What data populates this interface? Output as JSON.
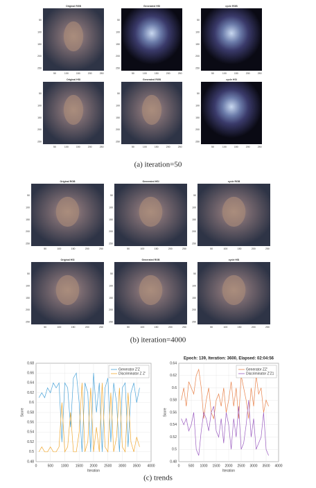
{
  "figure": {
    "image_ticks": [
      "50",
      "100",
      "150",
      "200",
      "250"
    ],
    "panels": [
      {
        "caption": "(a) iteration=50",
        "images": [
          "Original RGB",
          "Generated HSI",
          "cycle RGB",
          "Original HSI",
          "Generated RGB",
          "cycle HSI"
        ]
      },
      {
        "caption": "(b) iteration=4000",
        "images": [
          "Original RGB",
          "Generated HSI",
          "cycle RGB",
          "Original HSI",
          "Generated RGB",
          "cycle HSI"
        ]
      }
    ],
    "trends_caption": "(c) trends"
  },
  "chart_data": [
    {
      "type": "line",
      "xlabel": "Iteration",
      "ylabel": "Score",
      "x": [
        100,
        200,
        300,
        400,
        500,
        600,
        700,
        800,
        900,
        1000,
        1100,
        1200,
        1300,
        1400,
        1500,
        1600,
        1700,
        1800,
        1900,
        2000,
        2100,
        2200,
        2300,
        2400,
        2500,
        2600,
        2700,
        2800,
        2900,
        3000,
        3100,
        3200,
        3300,
        3400,
        3500,
        3600
      ],
      "series": [
        {
          "name": "Generator Z'Z",
          "color": "#4aa3d8",
          "values": [
            0.61,
            0.62,
            0.61,
            0.63,
            0.62,
            0.64,
            0.63,
            0.64,
            0.52,
            0.64,
            0.63,
            0.55,
            0.65,
            0.66,
            0.6,
            0.5,
            0.64,
            0.62,
            0.5,
            0.66,
            0.58,
            0.64,
            0.5,
            0.63,
            0.65,
            0.52,
            0.64,
            0.6,
            0.5,
            0.63,
            0.64,
            0.51,
            0.62,
            0.64,
            0.6,
            0.63
          ]
        },
        {
          "name": "Discriminator Z Z'",
          "color": "#f0a830",
          "values": [
            0.5,
            0.51,
            0.5,
            0.5,
            0.51,
            0.5,
            0.5,
            0.51,
            0.6,
            0.5,
            0.51,
            0.58,
            0.5,
            0.5,
            0.54,
            0.64,
            0.5,
            0.52,
            0.63,
            0.5,
            0.55,
            0.5,
            0.64,
            0.51,
            0.5,
            0.62,
            0.5,
            0.53,
            0.63,
            0.51,
            0.5,
            0.62,
            0.52,
            0.5,
            0.53,
            0.51
          ]
        }
      ],
      "xlim": [
        0,
        4000
      ],
      "xticks": [
        0,
        500,
        1000,
        1500,
        2000,
        2500,
        3000,
        3500,
        4000
      ],
      "ylim": [
        0.48,
        0.68
      ],
      "yticks": [
        0.48,
        0.5,
        0.52,
        0.54,
        0.56,
        0.58,
        0.6,
        0.62,
        0.64,
        0.66,
        0.68
      ],
      "grid": true,
      "legend": "upper-right"
    },
    {
      "type": "line",
      "title": "Epoch: 139, Iteration: 3600, Elapsed: 02:04:56",
      "xlabel": "Iteration",
      "ylabel": "Score",
      "x": [
        100,
        200,
        300,
        400,
        500,
        600,
        700,
        800,
        900,
        1000,
        1100,
        1200,
        1300,
        1400,
        1500,
        1600,
        1700,
        1800,
        1900,
        2000,
        2100,
        2200,
        2300,
        2400,
        2500,
        2600,
        2700,
        2800,
        2900,
        3000,
        3100,
        3200,
        3300,
        3400,
        3500,
        3600
      ],
      "series": [
        {
          "name": "Generator ZZ'",
          "color": "#e8824a",
          "values": [
            0.58,
            0.6,
            0.57,
            0.61,
            0.6,
            0.59,
            0.62,
            0.63,
            0.6,
            0.55,
            0.58,
            0.6,
            0.56,
            0.55,
            0.58,
            0.59,
            0.57,
            0.6,
            0.56,
            0.58,
            0.61,
            0.57,
            0.6,
            0.55,
            0.62,
            0.6,
            0.58,
            0.55,
            0.6,
            0.57,
            0.62,
            0.59,
            0.6,
            0.56,
            0.58,
            0.57
          ]
        },
        {
          "name": "Discriminator Z'Z1",
          "color": "#9a5cc0",
          "values": [
            0.55,
            0.54,
            0.55,
            0.53,
            0.54,
            0.56,
            0.5,
            0.49,
            0.53,
            0.56,
            0.55,
            0.53,
            0.56,
            0.57,
            0.53,
            0.52,
            0.55,
            0.51,
            0.56,
            0.54,
            0.5,
            0.55,
            0.52,
            0.57,
            0.5,
            0.51,
            0.54,
            0.58,
            0.52,
            0.55,
            0.5,
            0.51,
            0.52,
            0.56,
            0.5,
            0.49
          ]
        }
      ],
      "xlim": [
        0,
        4000
      ],
      "xticks": [
        0,
        500,
        1000,
        1500,
        2000,
        2500,
        3000,
        3500,
        4000
      ],
      "ylim": [
        0.48,
        0.64
      ],
      "yticks": [
        0.48,
        0.5,
        0.52,
        0.54,
        0.56,
        0.58,
        0.6,
        0.62,
        0.64
      ],
      "grid": true,
      "legend": "upper-right"
    }
  ]
}
